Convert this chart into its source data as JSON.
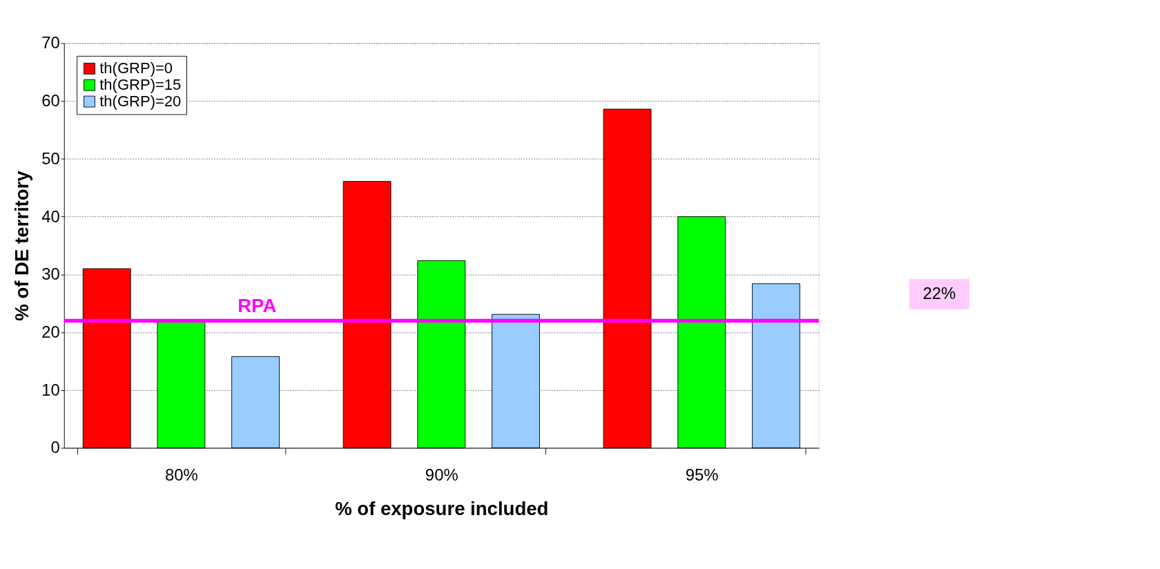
{
  "chart_data": {
    "type": "bar",
    "xlabel": "% of exposure included",
    "ylabel": "% of DE territory",
    "categories": [
      "80%",
      "90%",
      "95%"
    ],
    "series": [
      {
        "name": "th(GRP)=0",
        "color": "#ff0000",
        "values": [
          31,
          46.1,
          58.6
        ]
      },
      {
        "name": "th(GRP)=15",
        "color": "#00ff00",
        "values": [
          22,
          32.4,
          40
        ]
      },
      {
        "name": "th(GRP)=20",
        "color": "#99ccff",
        "values": [
          15.8,
          23.1,
          28.4
        ]
      }
    ],
    "ylim": [
      0,
      70
    ],
    "yticks": [
      0,
      10,
      20,
      30,
      40,
      50,
      60,
      70
    ],
    "grid": "y",
    "legend": "top left",
    "ref_lines": [
      {
        "axis": "y",
        "value": 22,
        "label": "RPA",
        "color": "#ff00ff"
      }
    ],
    "annotations": [
      "22%"
    ]
  }
}
